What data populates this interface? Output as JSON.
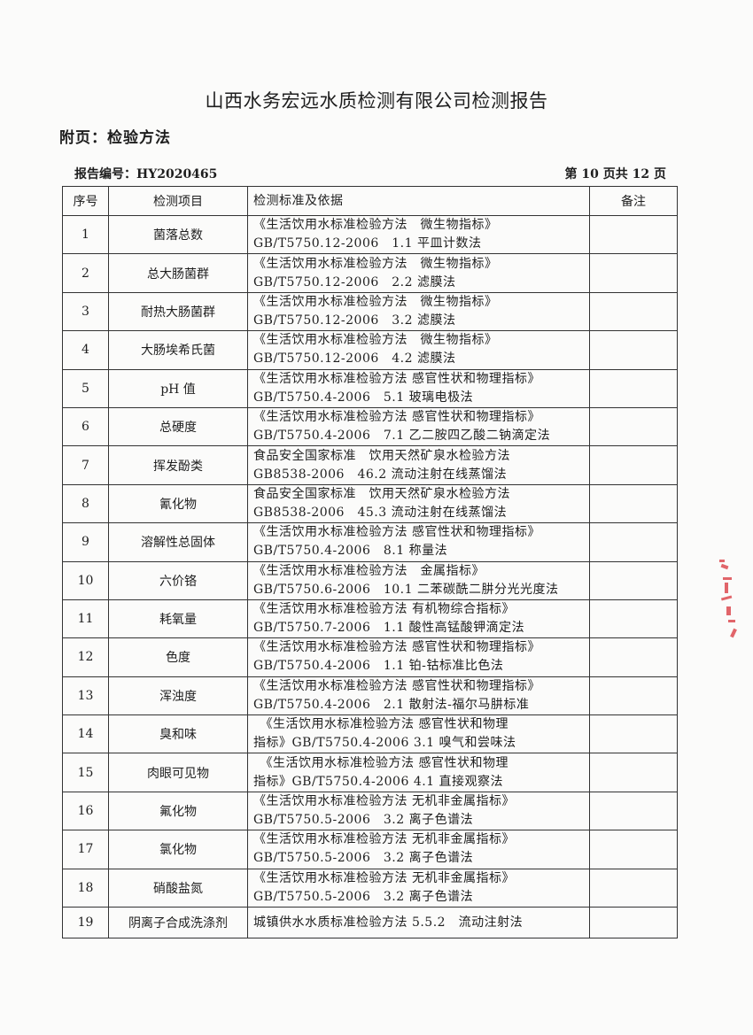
{
  "title": "山西水务宏远水质检测有限公司检测报告",
  "subtitle": "附页：检验方法",
  "report_no": "报告编号：HY2020465",
  "page_info": "第 10 页共 12 页",
  "table": {
    "headers": [
      "序号",
      "检测项目",
      "检测标准及依据",
      "备注"
    ],
    "rows": [
      {
        "no": "1",
        "item": "菌落总数",
        "std1": "《生活饮用水标准检验方法　微生物指标》",
        "std2": "GB/T5750.12-2006　1.1 平皿计数法",
        "note": ""
      },
      {
        "no": "2",
        "item": "总大肠菌群",
        "std1": "《生活饮用水标准检验方法　微生物指标》",
        "std2": "GB/T5750.12-2006　2.2 滤膜法",
        "note": ""
      },
      {
        "no": "3",
        "item": "耐热大肠菌群",
        "std1": "《生活饮用水标准检验方法　微生物指标》",
        "std2": "GB/T5750.12-2006　3.2 滤膜法",
        "note": ""
      },
      {
        "no": "4",
        "item": "大肠埃希氏菌",
        "std1": "《生活饮用水标准检验方法　微生物指标》",
        "std2": "GB/T5750.12-2006　4.2 滤膜法",
        "note": ""
      },
      {
        "no": "5",
        "item": "pH 值",
        "std1": "《生活饮用水标准检验方法 感官性状和物理指标》",
        "std2": "GB/T5750.4-2006　5.1 玻璃电极法",
        "note": ""
      },
      {
        "no": "6",
        "item": "总硬度",
        "std1": "《生活饮用水标准检验方法 感官性状和物理指标》",
        "std2": "GB/T5750.4-2006　7.1 乙二胺四乙酸二钠滴定法",
        "note": ""
      },
      {
        "no": "7",
        "item": "挥发酚类",
        "std1": "食品安全国家标准　饮用天然矿泉水检验方法",
        "std2": "GB8538-2006　46.2 流动注射在线蒸馏法",
        "note": ""
      },
      {
        "no": "8",
        "item": "氰化物",
        "std1": "食品安全国家标准　饮用天然矿泉水检验方法",
        "std2": "GB8538-2006　45.3 流动注射在线蒸馏法",
        "note": ""
      },
      {
        "no": "9",
        "item": "溶解性总固体",
        "std1": "《生活饮用水标准检验方法 感官性状和物理指标》",
        "std2": "GB/T5750.4-2006　8.1 称量法",
        "note": ""
      },
      {
        "no": "10",
        "item": "六价铬",
        "std1": "《生活饮用水标准检验方法　金属指标》",
        "std2": "GB/T5750.6-2006　10.1 二苯碳酰二肼分光光度法",
        "note": ""
      },
      {
        "no": "11",
        "item": "耗氧量",
        "std1": "《生活饮用水标准检验方法 有机物综合指标》",
        "std2": "GB/T5750.7-2006　1.1 酸性高锰酸钾滴定法",
        "note": ""
      },
      {
        "no": "12",
        "item": "色度",
        "std1": "《生活饮用水标准检验方法 感官性状和物理指标》",
        "std2": "GB/T5750.4-2006　1.1 铂-钴标准比色法",
        "note": ""
      },
      {
        "no": "13",
        "item": "浑浊度",
        "std1": "《生活饮用水标准检验方法 感官性状和物理指标》",
        "std2": "GB/T5750.4-2006　2.1 散射法-福尔马肼标准",
        "note": ""
      },
      {
        "no": "14",
        "item": "臭和味",
        "std1": "　《生活饮用水标准检验方法 感官性状和物理",
        "std2": "指标》GB/T5750.4-2006 3.1 嗅气和尝味法",
        "note": ""
      },
      {
        "no": "15",
        "item": "肉眼可见物",
        "std1": "　《生活饮用水标准检验方法 感官性状和物理",
        "std2": "指标》GB/T5750.4-2006 4.1 直接观察法",
        "note": ""
      },
      {
        "no": "16",
        "item": "氟化物",
        "std1": "《生活饮用水标准检验方法 无机非金属指标》",
        "std2": "GB/T5750.5-2006　3.2 离子色谱法",
        "note": ""
      },
      {
        "no": "17",
        "item": "氯化物",
        "std1": "《生活饮用水标准检验方法 无机非金属指标》",
        "std2": "GB/T5750.5-2006　3.2 离子色谱法",
        "note": ""
      },
      {
        "no": "18",
        "item": "硝酸盐氮",
        "std1": "《生活饮用水标准检验方法 无机非金属指标》",
        "std2": "GB/T5750.5-2006　3.2 离子色谱法",
        "note": ""
      },
      {
        "no": "19",
        "item": "阴离子合成洗涤剂",
        "std1": "城镇供水水质标准检验方法 5.5.2　流动注射法",
        "std2": "",
        "note": ""
      }
    ]
  },
  "colors": {
    "stamp": "#d9343a",
    "text": "#1e1e1e"
  }
}
